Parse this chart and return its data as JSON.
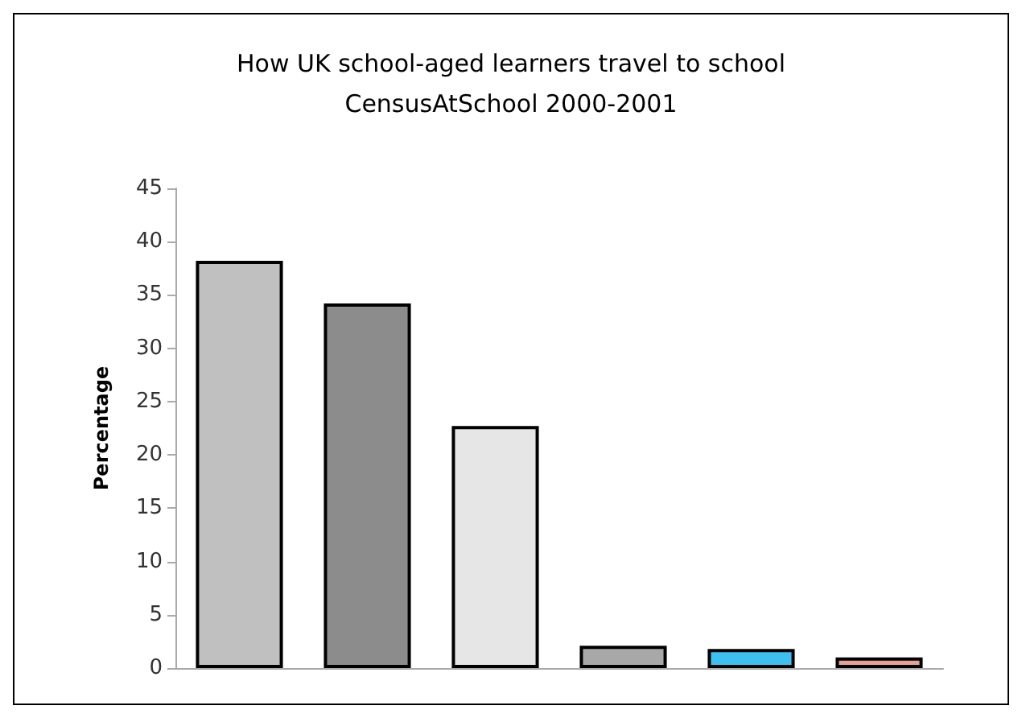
{
  "chart_data": {
    "type": "bar",
    "title": "How UK school-aged learners travel to school",
    "subtitle": "CensusAtSchool 2000-2001",
    "ylabel": "Percentage",
    "categories": [
      null,
      null,
      null,
      null,
      null,
      null
    ],
    "values": [
      38.2,
      34.2,
      22.7,
      2.1,
      1.8,
      1.0
    ],
    "colors": [
      "#c0c0c0",
      "#8c8c8c",
      "#e6e6e6",
      "#a8a8a8",
      "#3cc0f0",
      "#e8a090"
    ],
    "ylim": [
      0,
      45
    ],
    "yticks": [
      0,
      5,
      10,
      15,
      20,
      25,
      30,
      35,
      40,
      45
    ],
    "grid": false
  }
}
